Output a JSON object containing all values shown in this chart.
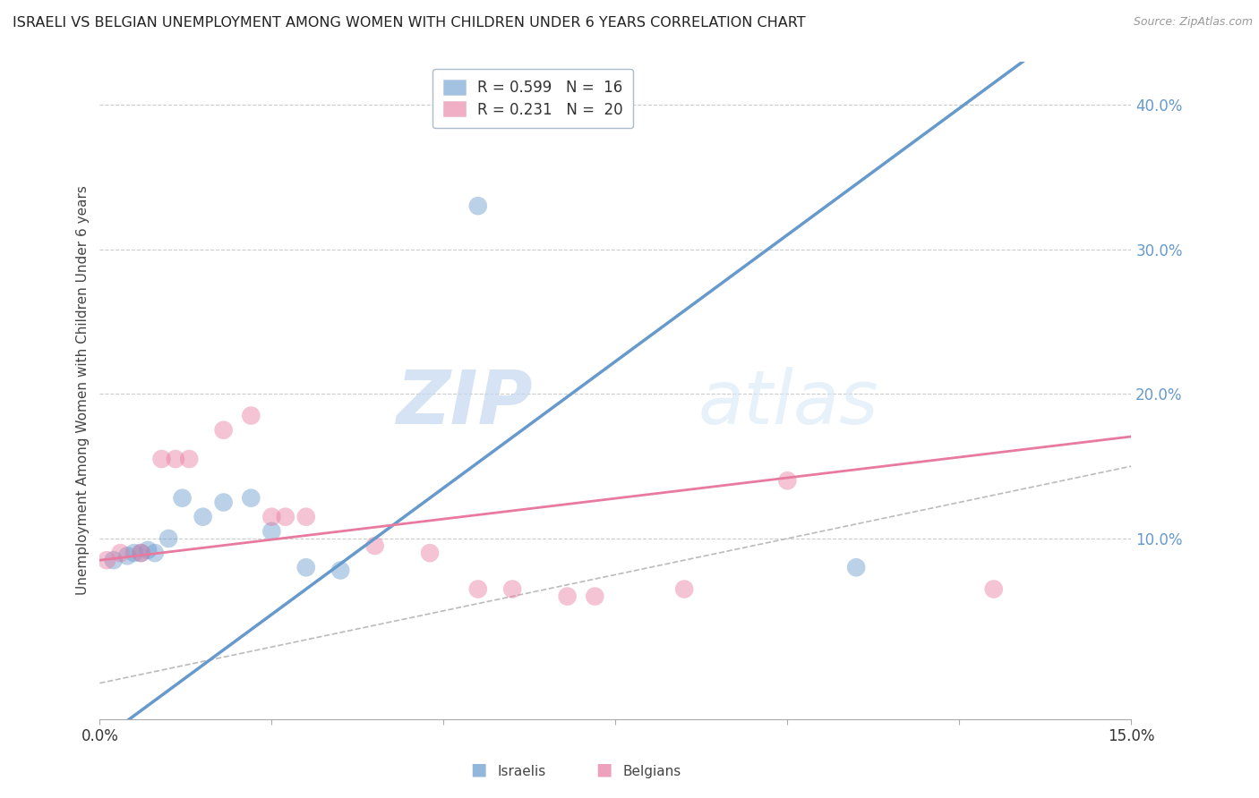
{
  "title": "ISRAELI VS BELGIAN UNEMPLOYMENT AMONG WOMEN WITH CHILDREN UNDER 6 YEARS CORRELATION CHART",
  "source": "Source: ZipAtlas.com",
  "ylabel": "Unemployment Among Women with Children Under 6 years",
  "xlim": [
    0.0,
    0.15
  ],
  "ylim": [
    -0.025,
    0.43
  ],
  "yticks_right": [
    0.1,
    0.2,
    0.3,
    0.4
  ],
  "ytick_right_labels": [
    "10.0%",
    "20.0%",
    "30.0%",
    "40.0%"
  ],
  "background_color": "#ffffff",
  "grid_color": "#cccccc",
  "israeli_color": "#6699cc",
  "belgian_color": "#e87aa0",
  "israeli_scatter": [
    [
      0.002,
      0.085
    ],
    [
      0.004,
      0.088
    ],
    [
      0.005,
      0.09
    ],
    [
      0.006,
      0.09
    ],
    [
      0.007,
      0.092
    ],
    [
      0.008,
      0.09
    ],
    [
      0.01,
      0.1
    ],
    [
      0.012,
      0.128
    ],
    [
      0.015,
      0.115
    ],
    [
      0.018,
      0.125
    ],
    [
      0.022,
      0.128
    ],
    [
      0.025,
      0.105
    ],
    [
      0.03,
      0.08
    ],
    [
      0.035,
      0.078
    ],
    [
      0.055,
      0.33
    ],
    [
      0.11,
      0.08
    ]
  ],
  "belgian_scatter": [
    [
      0.001,
      0.085
    ],
    [
      0.003,
      0.09
    ],
    [
      0.006,
      0.09
    ],
    [
      0.009,
      0.155
    ],
    [
      0.011,
      0.155
    ],
    [
      0.013,
      0.155
    ],
    [
      0.018,
      0.175
    ],
    [
      0.022,
      0.185
    ],
    [
      0.025,
      0.115
    ],
    [
      0.027,
      0.115
    ],
    [
      0.03,
      0.115
    ],
    [
      0.04,
      0.095
    ],
    [
      0.048,
      0.09
    ],
    [
      0.055,
      0.065
    ],
    [
      0.06,
      0.065
    ],
    [
      0.068,
      0.06
    ],
    [
      0.072,
      0.06
    ],
    [
      0.085,
      0.065
    ],
    [
      0.1,
      0.14
    ],
    [
      0.13,
      0.065
    ]
  ],
  "israeli_R": 0.599,
  "israeli_N": 16,
  "belgian_R": 0.231,
  "belgian_N": 20,
  "watermark_zip": "ZIP",
  "watermark_atlas": "atlas",
  "watermark_color": "#ddeeff"
}
